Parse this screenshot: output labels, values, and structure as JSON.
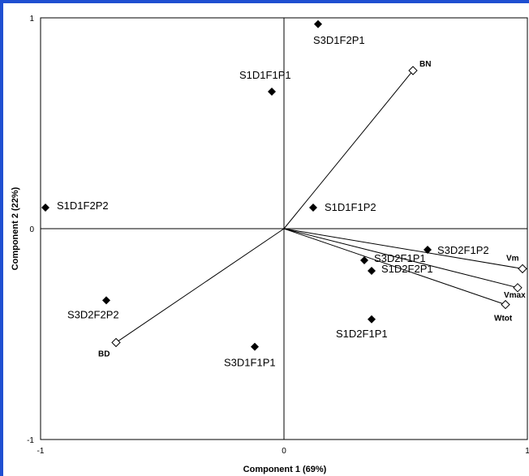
{
  "chart_data": {
    "type": "scatter",
    "title": "",
    "xlabel": "Component 1 (69%)",
    "ylabel": "Component 2 (22%)",
    "xlim": [
      -1,
      1
    ],
    "ylim": [
      -1,
      1
    ],
    "x_ticks": [
      "-1",
      "0",
      "1"
    ],
    "y_ticks": [
      "1",
      "0",
      "-1"
    ],
    "grid": false,
    "points": [
      {
        "label": "S3D1F2P1",
        "x": 0.14,
        "y": 0.97
      },
      {
        "label": "S1D1F1P1",
        "x": -0.05,
        "y": 0.65
      },
      {
        "label": "S1D1F2P2",
        "x": -0.98,
        "y": 0.1
      },
      {
        "label": "S1D1F1P2",
        "x": 0.12,
        "y": 0.1
      },
      {
        "label": "S3D2F1P2",
        "x": 0.59,
        "y": -0.1
      },
      {
        "label": "S3D2F1P1",
        "x": 0.33,
        "y": -0.15
      },
      {
        "label": "S1D2F2P1",
        "x": 0.36,
        "y": -0.2
      },
      {
        "label": "S3D2F2P2",
        "x": -0.73,
        "y": -0.34
      },
      {
        "label": "S1D2F1P1",
        "x": 0.36,
        "y": -0.43
      },
      {
        "label": "S3D1F1P1",
        "x": -0.12,
        "y": -0.56
      }
    ],
    "vectors": [
      {
        "label": "BN",
        "x": 0.53,
        "y": 0.75
      },
      {
        "label": "Vm",
        "x": 0.98,
        "y": -0.19
      },
      {
        "label": "Vmax",
        "x": 0.96,
        "y": -0.28
      },
      {
        "label": "Wtot",
        "x": 0.91,
        "y": -0.36
      },
      {
        "label": "BD",
        "x": -0.69,
        "y": -0.54
      }
    ]
  }
}
